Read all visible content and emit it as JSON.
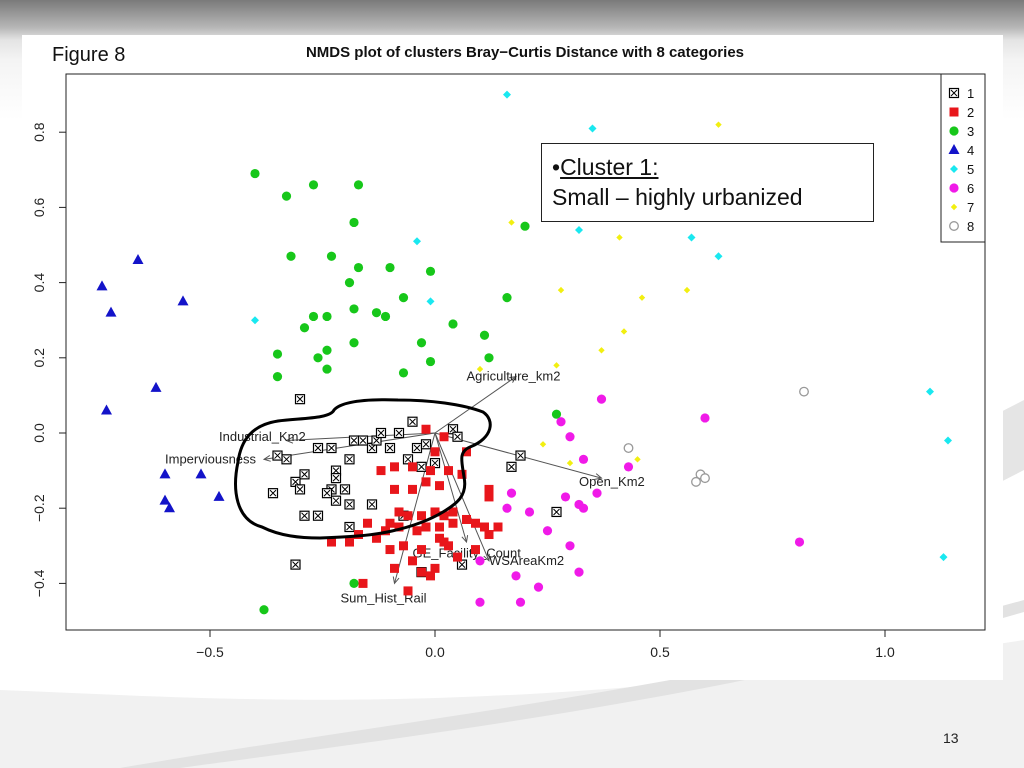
{
  "figure_label": "Figure 8",
  "page_number": "13",
  "callout": {
    "bullet": "•",
    "heading": "Cluster 1:",
    "text": "Small – highly urbanized"
  },
  "chart_data": {
    "type": "scatter",
    "title": "NMDS plot of clusters Bray−Curtis Distance with 8 categories",
    "xlabel": "",
    "ylabel": "",
    "xlim": [
      -0.82,
      1.22
    ],
    "ylim": [
      -0.53,
      0.95
    ],
    "xticks": [
      -0.5,
      0.0,
      0.5,
      1.0
    ],
    "xtick_labels": [
      "−0.5",
      "0.0",
      "0.5",
      "1.0"
    ],
    "yticks": [
      -0.4,
      -0.2,
      0.0,
      0.2,
      0.4,
      0.6,
      0.8
    ],
    "ytick_labels": [
      "−0.4",
      "−0.2",
      "0.0",
      "0.2",
      "0.4",
      "0.6",
      "0.8"
    ],
    "legend_position": "top-right",
    "grid": false,
    "series": [
      {
        "name": "1",
        "marker": "boxed-x",
        "color": "#000000",
        "points": [
          [
            -0.33,
            -0.07
          ],
          [
            -0.35,
            -0.06
          ],
          [
            -0.31,
            -0.13
          ],
          [
            -0.36,
            -0.16
          ],
          [
            -0.29,
            -0.11
          ],
          [
            -0.26,
            -0.04
          ],
          [
            -0.3,
            0.09
          ],
          [
            -0.29,
            -0.22
          ],
          [
            -0.3,
            -0.15
          ],
          [
            -0.26,
            -0.22
          ],
          [
            -0.23,
            -0.04
          ],
          [
            -0.22,
            -0.1
          ],
          [
            -0.19,
            -0.07
          ],
          [
            -0.18,
            -0.02
          ],
          [
            -0.16,
            -0.02
          ],
          [
            -0.14,
            -0.04
          ],
          [
            -0.13,
            -0.02
          ],
          [
            -0.12,
            0.0
          ],
          [
            -0.1,
            -0.04
          ],
          [
            -0.08,
            0.0
          ],
          [
            -0.05,
            0.03
          ],
          [
            -0.04,
            -0.04
          ],
          [
            -0.02,
            -0.03
          ],
          [
            0.0,
            -0.08
          ],
          [
            -0.03,
            -0.09
          ],
          [
            -0.06,
            -0.07
          ],
          [
            0.04,
            0.01
          ],
          [
            0.05,
            -0.01
          ],
          [
            -0.23,
            -0.15
          ],
          [
            -0.2,
            -0.15
          ],
          [
            -0.24,
            -0.16
          ],
          [
            -0.19,
            -0.19
          ],
          [
            -0.14,
            -0.19
          ],
          [
            -0.22,
            -0.12
          ],
          [
            -0.07,
            -0.22
          ],
          [
            0.19,
            -0.06
          ],
          [
            0.17,
            -0.09
          ],
          [
            0.27,
            -0.21
          ],
          [
            0.06,
            -0.35
          ],
          [
            -0.03,
            -0.37
          ],
          [
            -0.31,
            -0.35
          ],
          [
            -0.19,
            -0.25
          ],
          [
            -0.22,
            -0.18
          ]
        ]
      },
      {
        "name": "2",
        "marker": "square",
        "color": "#e8161b",
        "points": [
          [
            -0.02,
            0.01
          ],
          [
            0.0,
            -0.05
          ],
          [
            0.02,
            -0.01
          ],
          [
            0.07,
            -0.05
          ],
          [
            -0.12,
            -0.1
          ],
          [
            -0.09,
            -0.09
          ],
          [
            -0.05,
            -0.09
          ],
          [
            -0.01,
            -0.1
          ],
          [
            0.03,
            -0.1
          ],
          [
            -0.09,
            -0.15
          ],
          [
            -0.05,
            -0.15
          ],
          [
            -0.02,
            -0.13
          ],
          [
            0.01,
            -0.14
          ],
          [
            0.06,
            -0.11
          ],
          [
            -0.08,
            -0.21
          ],
          [
            -0.06,
            -0.22
          ],
          [
            -0.03,
            -0.22
          ],
          [
            0.0,
            -0.21
          ],
          [
            0.02,
            -0.22
          ],
          [
            0.04,
            -0.21
          ],
          [
            -0.08,
            -0.25
          ],
          [
            -0.04,
            -0.26
          ],
          [
            -0.02,
            -0.25
          ],
          [
            0.01,
            -0.25
          ],
          [
            0.04,
            -0.24
          ],
          [
            0.07,
            -0.23
          ],
          [
            0.09,
            -0.24
          ],
          [
            0.11,
            -0.25
          ],
          [
            0.14,
            -0.25
          ],
          [
            0.12,
            -0.15
          ],
          [
            0.12,
            -0.17
          ],
          [
            -0.1,
            -0.24
          ],
          [
            -0.11,
            -0.26
          ],
          [
            -0.15,
            -0.24
          ],
          [
            -0.17,
            -0.27
          ],
          [
            -0.19,
            -0.29
          ],
          [
            -0.23,
            -0.29
          ],
          [
            -0.13,
            -0.28
          ],
          [
            -0.1,
            -0.31
          ],
          [
            -0.07,
            -0.3
          ],
          [
            -0.03,
            -0.31
          ],
          [
            0.02,
            -0.29
          ],
          [
            0.05,
            -0.33
          ],
          [
            0.09,
            -0.31
          ],
          [
            0.12,
            -0.27
          ],
          [
            -0.05,
            -0.34
          ],
          [
            -0.03,
            -0.37
          ],
          [
            -0.01,
            -0.38
          ],
          [
            -0.09,
            -0.36
          ],
          [
            -0.16,
            -0.4
          ],
          [
            -0.06,
            -0.42
          ],
          [
            0.0,
            -0.36
          ],
          [
            0.03,
            -0.3
          ],
          [
            0.01,
            -0.28
          ]
        ]
      },
      {
        "name": "3",
        "marker": "circle",
        "color": "#17c71a",
        "points": [
          [
            -0.4,
            0.69
          ],
          [
            -0.33,
            0.63
          ],
          [
            -0.27,
            0.66
          ],
          [
            -0.17,
            0.66
          ],
          [
            -0.18,
            0.56
          ],
          [
            -0.32,
            0.47
          ],
          [
            -0.23,
            0.47
          ],
          [
            -0.17,
            0.44
          ],
          [
            -0.19,
            0.4
          ],
          [
            -0.1,
            0.44
          ],
          [
            -0.01,
            0.43
          ],
          [
            -0.07,
            0.36
          ],
          [
            -0.18,
            0.33
          ],
          [
            -0.13,
            0.32
          ],
          [
            -0.11,
            0.31
          ],
          [
            -0.27,
            0.31
          ],
          [
            -0.24,
            0.31
          ],
          [
            -0.29,
            0.28
          ],
          [
            -0.24,
            0.22
          ],
          [
            -0.18,
            0.24
          ],
          [
            -0.03,
            0.24
          ],
          [
            0.04,
            0.29
          ],
          [
            0.11,
            0.26
          ],
          [
            0.16,
            0.36
          ],
          [
            -0.35,
            0.21
          ],
          [
            -0.26,
            0.2
          ],
          [
            -0.24,
            0.17
          ],
          [
            -0.35,
            0.15
          ],
          [
            -0.07,
            0.16
          ],
          [
            -0.01,
            0.19
          ],
          [
            0.12,
            0.2
          ],
          [
            0.2,
            0.55
          ],
          [
            0.27,
            0.05
          ],
          [
            -0.18,
            -0.4
          ],
          [
            -0.38,
            -0.47
          ]
        ]
      },
      {
        "name": "4",
        "marker": "triangle",
        "color": "#1313c9",
        "points": [
          [
            -0.74,
            0.39
          ],
          [
            -0.66,
            0.46
          ],
          [
            -0.72,
            0.32
          ],
          [
            -0.56,
            0.35
          ],
          [
            -0.62,
            0.12
          ],
          [
            -0.73,
            0.06
          ],
          [
            -0.6,
            -0.11
          ],
          [
            -0.52,
            -0.11
          ],
          [
            -0.48,
            -0.17
          ],
          [
            -0.6,
            -0.18
          ],
          [
            -0.59,
            -0.2
          ]
        ]
      },
      {
        "name": "5",
        "marker": "diamond",
        "color": "#19e8f0",
        "points": [
          [
            0.16,
            0.9
          ],
          [
            0.35,
            0.81
          ],
          [
            -0.04,
            0.51
          ],
          [
            -0.01,
            0.35
          ],
          [
            -0.4,
            0.3
          ],
          [
            0.32,
            0.54
          ],
          [
            0.57,
            0.52
          ],
          [
            0.63,
            0.47
          ],
          [
            1.1,
            0.11
          ],
          [
            1.14,
            -0.02
          ],
          [
            1.13,
            -0.33
          ]
        ]
      },
      {
        "name": "6",
        "marker": "circle",
        "color": "#f01ae8",
        "points": [
          [
            0.28,
            0.03
          ],
          [
            0.37,
            0.09
          ],
          [
            0.6,
            0.04
          ],
          [
            0.3,
            -0.01
          ],
          [
            0.33,
            -0.07
          ],
          [
            0.43,
            -0.09
          ],
          [
            0.36,
            -0.16
          ],
          [
            0.29,
            -0.17
          ],
          [
            0.32,
            -0.19
          ],
          [
            0.33,
            -0.2
          ],
          [
            0.17,
            -0.16
          ],
          [
            0.16,
            -0.2
          ],
          [
            0.21,
            -0.21
          ],
          [
            0.25,
            -0.26
          ],
          [
            0.3,
            -0.3
          ],
          [
            0.1,
            -0.34
          ],
          [
            0.32,
            -0.37
          ],
          [
            0.18,
            -0.38
          ],
          [
            0.23,
            -0.41
          ],
          [
            0.1,
            -0.45
          ],
          [
            0.19,
            -0.45
          ],
          [
            0.81,
            -0.29
          ]
        ]
      },
      {
        "name": "7",
        "marker": "diamond-small",
        "color": "#f2ef10",
        "points": [
          [
            0.63,
            0.82
          ],
          [
            0.17,
            0.56
          ],
          [
            0.41,
            0.52
          ],
          [
            0.46,
            0.36
          ],
          [
            0.56,
            0.38
          ],
          [
            0.28,
            0.38
          ],
          [
            0.42,
            0.27
          ],
          [
            0.37,
            0.22
          ],
          [
            0.27,
            0.18
          ],
          [
            0.1,
            0.17
          ],
          [
            0.24,
            -0.03
          ],
          [
            0.3,
            -0.08
          ],
          [
            0.45,
            -0.07
          ]
        ]
      },
      {
        "name": "8",
        "marker": "open-circle",
        "color": "#999999",
        "points": [
          [
            0.82,
            0.11
          ],
          [
            0.43,
            -0.04
          ],
          [
            0.59,
            -0.11
          ],
          [
            0.6,
            -0.12
          ],
          [
            0.58,
            -0.13
          ]
        ]
      }
    ],
    "vectors": [
      {
        "label": "Agriculture_km2",
        "to": [
          0.18,
          0.15
        ],
        "label_at": [
          0.07,
          0.15
        ]
      },
      {
        "label": "Industrial_Km2",
        "to": [
          -0.33,
          -0.02
        ],
        "label_at": [
          -0.48,
          -0.01
        ]
      },
      {
        "label": "Imperviousness",
        "to": [
          -0.38,
          -0.07
        ],
        "label_at": [
          -0.6,
          -0.07
        ]
      },
      {
        "label": "Open_Km2",
        "to": [
          0.37,
          -0.12
        ],
        "label_at": [
          0.32,
          -0.13
        ]
      },
      {
        "label": "GE_Facility_Count",
        "to": [
          0.07,
          -0.29
        ],
        "label_at": [
          -0.05,
          -0.32
        ]
      },
      {
        "label": "WSAreaKm2",
        "to": [
          0.12,
          -0.34
        ],
        "label_at": [
          0.12,
          -0.34
        ]
      },
      {
        "label": "Sum_Hist_Rail",
        "to": [
          -0.09,
          -0.4
        ],
        "label_at": [
          -0.21,
          -0.44
        ]
      }
    ],
    "vector_origin": [
      0.0,
      0.0
    ]
  }
}
